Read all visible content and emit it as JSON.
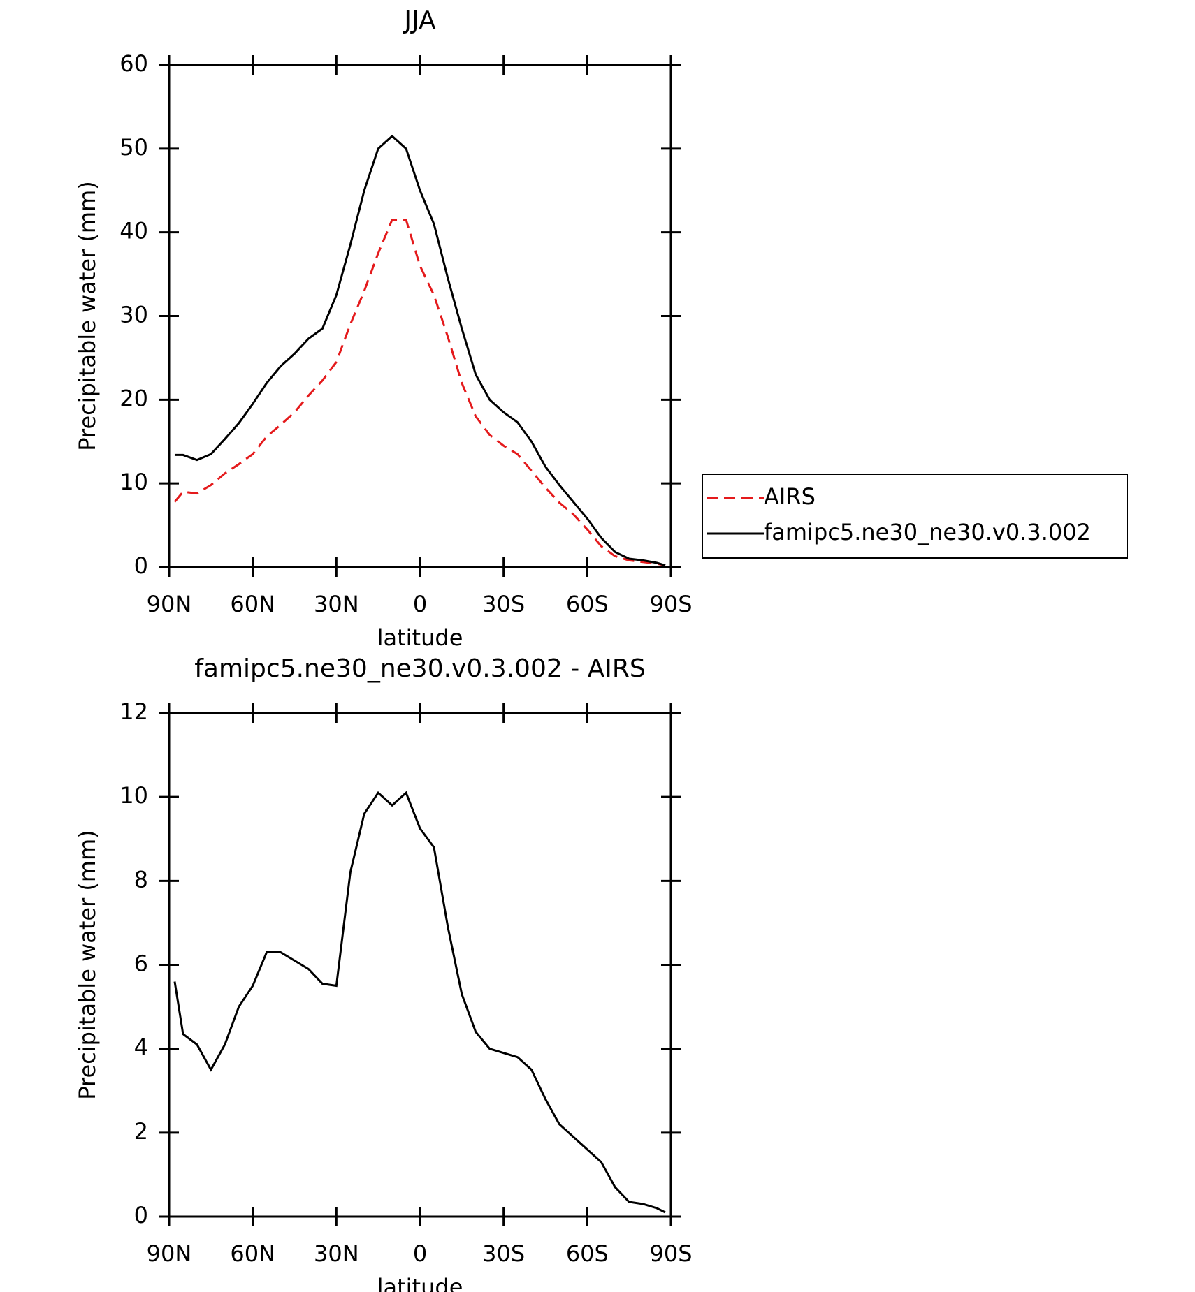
{
  "chart_data": [
    {
      "type": "line",
      "title": "JJA",
      "xlabel": "latitude",
      "ylabel": "Precipitable water (mm)",
      "x": [
        88,
        85,
        80,
        75,
        70,
        65,
        60,
        55,
        50,
        45,
        40,
        35,
        30,
        25,
        20,
        15,
        10,
        5,
        0,
        -5,
        -10,
        -15,
        -20,
        -25,
        -30,
        -35,
        -40,
        -45,
        -50,
        -55,
        -60,
        -65,
        -70,
        -75,
        -80,
        -85,
        -88
      ],
      "xlim": [
        90,
        -90
      ],
      "xticks": [
        {
          "value": 90,
          "label": "90N"
        },
        {
          "value": 60,
          "label": "60N"
        },
        {
          "value": 30,
          "label": "30N"
        },
        0,
        {
          "value": -30,
          "label": "30S"
        },
        {
          "value": -60,
          "label": "60S"
        },
        {
          "value": -90,
          "label": "90S"
        }
      ],
      "ylim": [
        0,
        60
      ],
      "yticks": [
        0,
        10,
        20,
        30,
        40,
        50,
        60
      ],
      "legend": "right",
      "series": [
        {
          "name": "AIRS",
          "color": "#e41a1c",
          "linestyle": "dashed",
          "values": [
            7.8,
            9,
            8.8,
            9.8,
            11.2,
            12.3,
            13.5,
            15.6,
            17,
            18.5,
            20.5,
            22.3,
            24.5,
            29,
            33,
            37.5,
            41.5,
            41.5,
            36,
            32.5,
            27.5,
            22,
            18,
            15.8,
            14.5,
            13.5,
            11.5,
            9.5,
            7.7,
            6.3,
            4.5,
            2.5,
            1.3,
            0.8,
            0.6,
            0.4,
            0.2
          ]
        },
        {
          "name": "famipc5.ne30_ne30.v0.3.002",
          "color": "#000000",
          "linestyle": "solid",
          "values": [
            13.4,
            13.4,
            12.8,
            13.5,
            15.3,
            17.2,
            19.5,
            22,
            24,
            25.5,
            27.3,
            28.5,
            32.5,
            38.5,
            45,
            50,
            51.5,
            50,
            45,
            41,
            34.5,
            28.5,
            23,
            20,
            18.5,
            17.3,
            15,
            12,
            9.8,
            7.8,
            5.8,
            3.5,
            1.8,
            1,
            0.8,
            0.5,
            0.2
          ]
        }
      ]
    },
    {
      "type": "line",
      "title": "famipc5.ne30_ne30.v0.3.002 - AIRS",
      "xlabel": "latitude",
      "ylabel": "Precipitable water (mm)",
      "x": [
        88,
        85,
        80,
        75,
        70,
        65,
        60,
        55,
        50,
        45,
        40,
        35,
        30,
        25,
        20,
        15,
        10,
        5,
        0,
        -5,
        -10,
        -15,
        -20,
        -25,
        -30,
        -35,
        -40,
        -45,
        -50,
        -55,
        -60,
        -65,
        -70,
        -75,
        -80,
        -85,
        -88
      ],
      "xlim": [
        90,
        -90
      ],
      "xticks": [
        {
          "value": 90,
          "label": "90N"
        },
        {
          "value": 60,
          "label": "60N"
        },
        {
          "value": 30,
          "label": "30N"
        },
        0,
        {
          "value": -30,
          "label": "30S"
        },
        {
          "value": -60,
          "label": "60S"
        },
        {
          "value": -90,
          "label": "90S"
        }
      ],
      "ylim": [
        0,
        12
      ],
      "yticks": [
        0,
        2,
        4,
        6,
        8,
        10,
        12
      ],
      "series": [
        {
          "color": "#000000",
          "linestyle": "solid",
          "values": [
            5.6,
            4.35,
            4.1,
            3.5,
            4.1,
            5.0,
            5.5,
            6.3,
            6.3,
            6.1,
            5.9,
            5.55,
            5.5,
            8.2,
            9.6,
            10.1,
            9.8,
            10.1,
            9.25,
            8.8,
            6.9,
            5.3,
            4.4,
            4.0,
            3.9,
            3.8,
            3.5,
            2.8,
            2.2,
            1.9,
            1.6,
            1.3,
            0.7,
            0.35,
            0.3,
            0.2,
            0.1
          ]
        }
      ]
    }
  ]
}
